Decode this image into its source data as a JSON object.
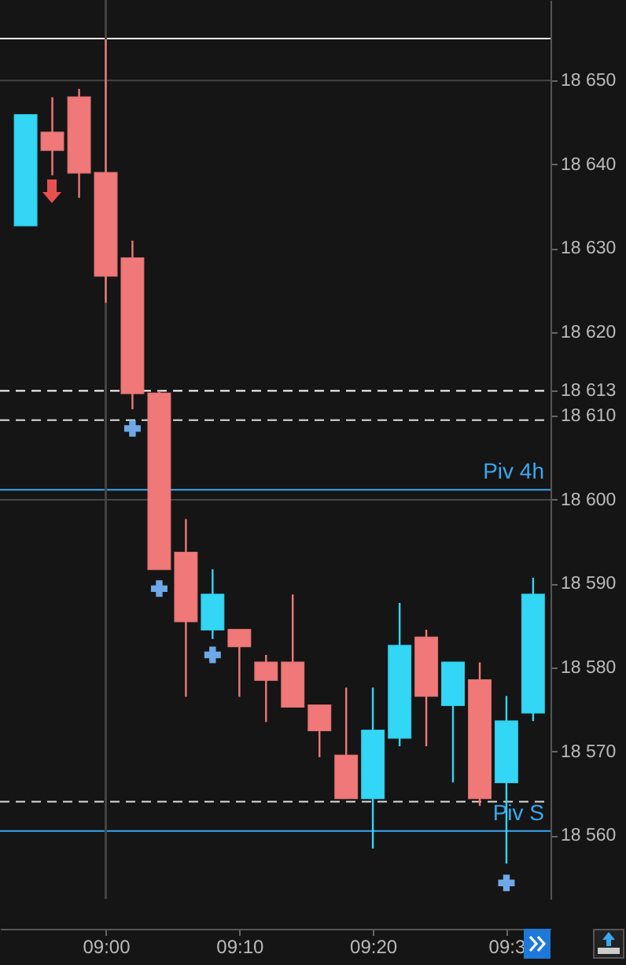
{
  "chart_data": {
    "type": "candlestick",
    "x": [
      8.9,
      8.9333,
      8.9667,
      9,
      9.0333,
      9.0667,
      9.1,
      9.1333,
      9.1667,
      9.2,
      9.2333,
      9.2667,
      9.3,
      9.3333,
      9.3667,
      9.4,
      9.4333,
      9.4667,
      9.5,
      9.5333
    ],
    "ohlc": [
      [
        18632.7,
        18645.9,
        18632.7,
        18645.9
      ],
      [
        18643.8,
        18648,
        18638.7,
        18641.7
      ],
      [
        18648,
        18649,
        18636,
        18639
      ],
      [
        18639,
        18654.9,
        18623.5,
        18626.7
      ],
      [
        18628.8,
        18630.9,
        18610.8,
        18612.7
      ],
      [
        18612.7,
        18613,
        18591.7,
        18591.7
      ],
      [
        18593.7,
        18597.7,
        18576.5,
        18585.5
      ],
      [
        18584.5,
        18591.7,
        18583.4,
        18588.7
      ],
      [
        18584.5,
        18584.5,
        18576.5,
        18582.5
      ],
      [
        18580.6,
        18581.5,
        18573.5,
        18578.5
      ],
      [
        18580.6,
        18588.7,
        18575.3,
        18575.3
      ],
      [
        18575.5,
        18575.5,
        18569.3,
        18572.5
      ],
      [
        18569.5,
        18577.6,
        18564.4,
        18564.4
      ],
      [
        18564.4,
        18577.6,
        18558.4,
        18572.5
      ],
      [
        18571.6,
        18587.7,
        18570.6,
        18582.6
      ],
      [
        18583.6,
        18584.5,
        18570.6,
        18576.6
      ],
      [
        18575.5,
        18580.6,
        18566.3,
        18580.6
      ],
      [
        18578.5,
        18580.6,
        18563.5,
        18564.4
      ],
      [
        18566.3,
        18576.6,
        18556.6,
        18573.6
      ],
      [
        18574.6,
        18590.7,
        18573.6,
        18588.7
      ]
    ],
    "colors": [
      "#33d6f5",
      "#f07878",
      "#f07878",
      "#f07878",
      "#f07878",
      "#f07878",
      "#f07878",
      "#33d6f5",
      "#f07878",
      "#f07878",
      "#f07878",
      "#f07878",
      "#f07878",
      "#33d6f5",
      "#33d6f5",
      "#f07878",
      "#33d6f5",
      "#f07878",
      "#33d6f5",
      "#33d6f5"
    ],
    "series": [
      {
        "type": "scatter",
        "color": "#6fa8e8",
        "marker": "cross",
        "x": [
          9.0333,
          9.0667,
          9.1333,
          9.5
        ],
        "values": [
          18608.5,
          18589.4,
          18581.5,
          18554.3
        ]
      }
    ],
    "xlim": [
      8.868,
      9.555
    ],
    "xticks": [
      {
        "value": 9,
        "label": "09:00"
      },
      {
        "value": 9.1667,
        "label": "09:10"
      },
      {
        "value": 9.3333,
        "label": "09:20"
      },
      {
        "value": 9.5,
        "label": "09:3"
      }
    ],
    "ylim": [
      18552.4,
      18659.6
    ],
    "yticks": [
      {
        "value": 18560,
        "label": "18 560"
      },
      {
        "value": 18570,
        "label": "18 570"
      },
      {
        "value": 18580,
        "label": "18 580"
      },
      {
        "value": 18590,
        "label": "18 590"
      },
      {
        "value": 18600,
        "label": "18 600"
      },
      {
        "value": 18610,
        "label": "18 610"
      },
      {
        "value": 18613,
        "label": "18 613"
      },
      {
        "value": 18620,
        "label": "18 620"
      },
      {
        "value": 18630,
        "label": "18 630"
      },
      {
        "value": 18640,
        "label": "18 640"
      },
      {
        "value": 18650,
        "label": "18 650"
      }
    ],
    "ref_lines": [
      {
        "axis": "y",
        "value": 18650,
        "color": "#444444",
        "line_style": "solid"
      },
      {
        "axis": "y",
        "value": 18600,
        "color": "#444444",
        "line_style": "solid"
      },
      {
        "axis": "x",
        "value": 9,
        "color": "#444444",
        "line_style": "solid"
      },
      {
        "axis": "y",
        "value": 18655,
        "color": "#e8e8e8",
        "line_style": "solid"
      },
      {
        "axis": "y",
        "value": 18613,
        "color": "#ffffff",
        "line_style": "dashed"
      },
      {
        "axis": "y",
        "value": 18609.5,
        "color": "#dddddd",
        "line_style": "dashed"
      },
      {
        "axis": "y",
        "value": 18564,
        "color": "#dddddd",
        "line_style": "dashed"
      },
      {
        "axis": "y",
        "value": 18601.2,
        "label": "Piv 4h",
        "color": "#3aa8f0",
        "line_style": "solid"
      },
      {
        "axis": "y",
        "value": 18560.5,
        "label": "Piv S",
        "color": "#3aa8f0",
        "line_style": "solid"
      }
    ],
    "grid": false
  }
}
